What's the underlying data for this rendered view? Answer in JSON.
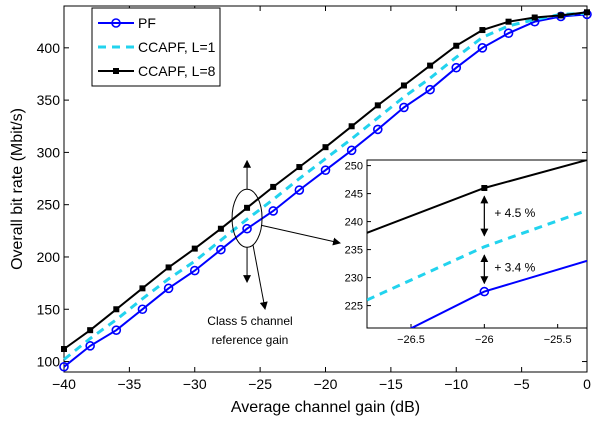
{
  "chart_data": {
    "type": "line",
    "xlabel": "Average channel gain (dB)",
    "ylabel": "Overall bit rate (Mbit/s)",
    "xlim": [
      -40,
      0
    ],
    "ylim": [
      90,
      440
    ],
    "xticks": [
      -40,
      -35,
      -30,
      -25,
      -20,
      -15,
      -10,
      -5,
      0
    ],
    "yticks": [
      100,
      150,
      200,
      250,
      300,
      350,
      400
    ],
    "x": [
      -40,
      -38,
      -36,
      -34,
      -32,
      -30,
      -28,
      -26,
      -24,
      -22,
      -20,
      -18,
      -16,
      -14,
      -12,
      -10,
      -8,
      -6,
      -4,
      -2,
      0
    ],
    "series": [
      {
        "name": "PF",
        "color": "#0000ff",
        "line_style": "solid",
        "marker": "circle",
        "values": [
          95,
          115,
          130,
          150,
          170,
          187,
          207,
          227,
          244,
          264,
          283,
          302,
          322,
          343,
          360,
          381,
          400,
          414,
          425,
          430,
          432
        ]
      },
      {
        "name": "CCAPF, L=1",
        "color": "#22d3ee",
        "line_style": "dashed",
        "marker": "none",
        "values": [
          102,
          122,
          140,
          160,
          179,
          196,
          216,
          236,
          255,
          275,
          294,
          313,
          333,
          353,
          371,
          391,
          410,
          421,
          427,
          432,
          433
        ]
      },
      {
        "name": "CCAPF, L=8",
        "color": "#000000",
        "line_style": "solid",
        "marker": "square",
        "values": [
          112,
          130,
          150,
          170,
          190,
          208,
          227,
          247,
          267,
          286,
          305,
          325,
          345,
          364,
          383,
          402,
          417,
          425,
          429,
          431,
          434
        ]
      }
    ],
    "legend_position": "top-left",
    "annotations": [
      {
        "text": "Class 5 channel",
        "text2": "reference gain"
      }
    ],
    "inset": {
      "xlim": [
        -26.8,
        -25.3
      ],
      "ylim": [
        221,
        251
      ],
      "xticks": [
        -26.5,
        -26,
        -25.5
      ],
      "yticks": [
        225,
        230,
        235,
        240,
        245,
        250
      ],
      "lines": [
        {
          "series": "PF",
          "x": [
            -26.8,
            -26,
            -25.3
          ],
          "y": [
            217,
            227.5,
            233
          ]
        },
        {
          "series": "CCAPF, L=1",
          "x": [
            -26.8,
            -26,
            -25.3
          ],
          "y": [
            226,
            235.5,
            242
          ]
        },
        {
          "series": "CCAPF, L=8",
          "x": [
            -26.8,
            -26,
            -25.3
          ],
          "y": [
            238,
            246,
            251
          ]
        }
      ],
      "annotations": [
        "+ 4.5 %",
        "+ 3.4 %"
      ]
    }
  }
}
